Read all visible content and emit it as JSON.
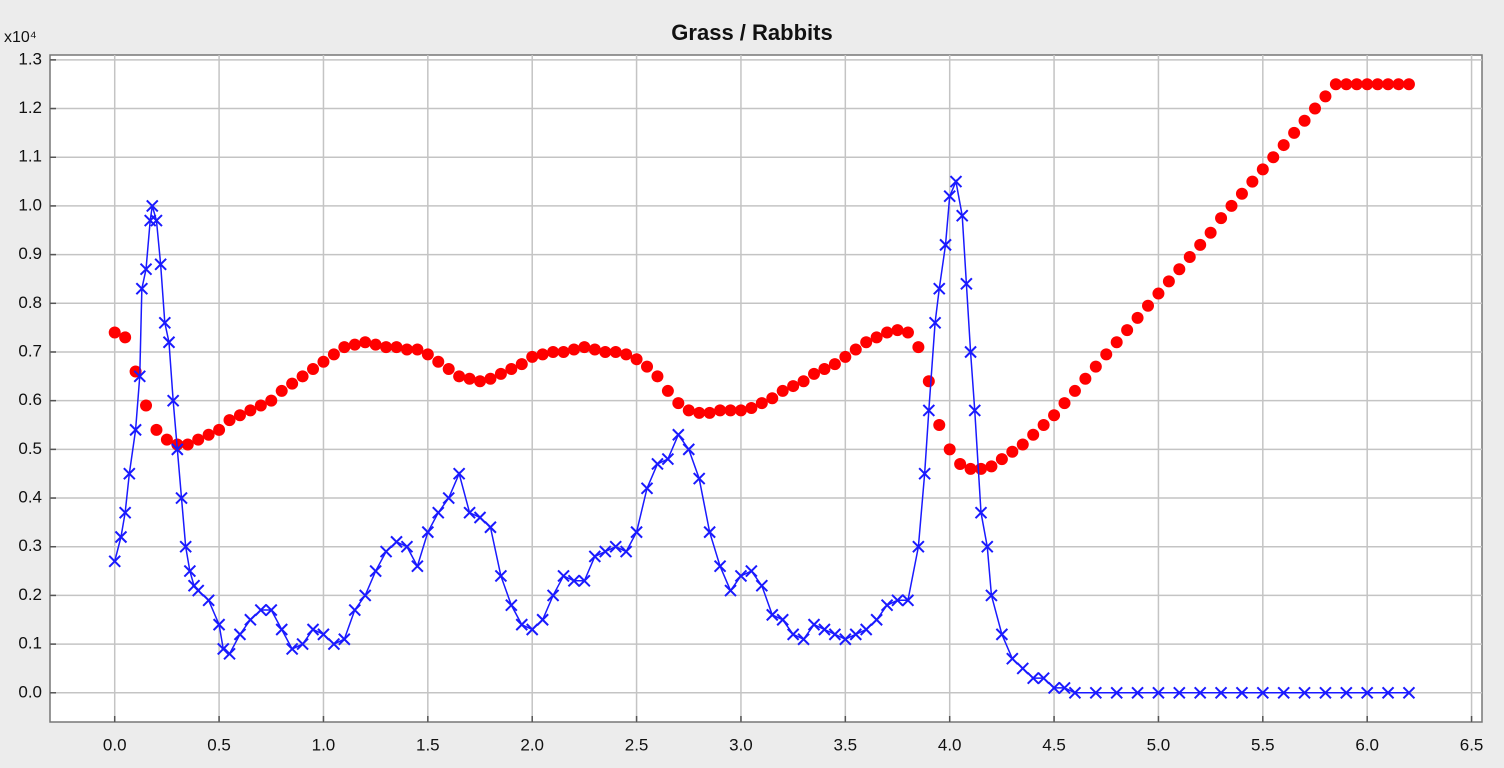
{
  "chart_data": {
    "type": "line",
    "title": "Grass / Rabbits",
    "y_multiplier": "x10⁴",
    "xlim": [
      -0.31,
      6.55
    ],
    "ylim": [
      -0.06,
      1.31
    ],
    "grid": true,
    "xticks": [
      {
        "value": 0,
        "label": "0.0"
      },
      0.5,
      {
        "value": 1,
        "label": "1.0"
      },
      1.5,
      {
        "value": 2,
        "label": "2.0"
      },
      2.5,
      {
        "value": 3,
        "label": "3.0"
      },
      3.5,
      {
        "value": 4,
        "label": "4.0"
      },
      4.5,
      {
        "value": 5,
        "label": "5.0"
      },
      5.5,
      {
        "value": 6,
        "label": "6.0"
      },
      6.5
    ],
    "yticks": [
      {
        "value": 0,
        "label": "0.0"
      },
      0.1,
      0.2,
      0.3,
      0.4,
      0.5,
      0.6,
      0.7,
      0.8,
      0.9,
      {
        "value": 1,
        "label": "1.0"
      },
      1.1,
      1.2,
      1.3
    ],
    "series": [
      {
        "color": "#ff0000",
        "marker": "circle",
        "x": [
          0,
          0.05,
          0.1,
          0.15,
          0.2,
          0.25,
          0.3,
          0.35,
          0.4,
          0.45,
          0.5,
          0.55,
          0.6,
          0.65,
          0.7,
          0.75,
          0.8,
          0.85,
          0.9,
          0.95,
          1,
          1.05,
          1.1,
          1.15,
          1.2,
          1.25,
          1.3,
          1.35,
          1.4,
          1.45,
          1.5,
          1.55,
          1.6,
          1.65,
          1.7,
          1.75,
          1.8,
          1.85,
          1.9,
          1.95,
          2,
          2.05,
          2.1,
          2.15,
          2.2,
          2.25,
          2.3,
          2.35,
          2.4,
          2.45,
          2.5,
          2.55,
          2.6,
          2.65,
          2.7,
          2.75,
          2.8,
          2.85,
          2.9,
          2.95,
          3,
          3.05,
          3.1,
          3.15,
          3.2,
          3.25,
          3.3,
          3.35,
          3.4,
          3.45,
          3.5,
          3.55,
          3.6,
          3.65,
          3.7,
          3.75,
          3.8,
          3.85,
          3.9,
          3.95,
          4,
          4.05,
          4.1,
          4.15,
          4.2,
          4.25,
          4.3,
          4.35,
          4.4,
          4.45,
          4.5,
          4.55,
          4.6,
          4.65,
          4.7,
          4.75,
          4.8,
          4.85,
          4.9,
          4.95,
          5,
          5.05,
          5.1,
          5.15,
          5.2,
          5.25,
          5.3,
          5.35,
          5.4,
          5.45,
          5.5,
          5.55,
          5.6,
          5.65,
          5.7,
          5.75,
          5.8,
          5.85,
          5.9,
          5.95,
          6,
          6.05,
          6.1,
          6.15,
          6.2
        ],
        "values": [
          0.74,
          0.73,
          0.66,
          0.59,
          0.54,
          0.52,
          0.51,
          0.51,
          0.52,
          0.53,
          0.54,
          0.56,
          0.57,
          0.58,
          0.59,
          0.6,
          0.62,
          0.635,
          0.65,
          0.665,
          0.68,
          0.695,
          0.71,
          0.715,
          0.72,
          0.715,
          0.71,
          0.71,
          0.705,
          0.705,
          0.695,
          0.68,
          0.665,
          0.65,
          0.645,
          0.64,
          0.645,
          0.655,
          0.665,
          0.675,
          0.69,
          0.695,
          0.7,
          0.7,
          0.705,
          0.71,
          0.705,
          0.7,
          0.7,
          0.695,
          0.685,
          0.67,
          0.65,
          0.62,
          0.595,
          0.58,
          0.575,
          0.575,
          0.58,
          0.58,
          0.58,
          0.585,
          0.595,
          0.605,
          0.62,
          0.63,
          0.64,
          0.655,
          0.665,
          0.675,
          0.69,
          0.705,
          0.72,
          0.73,
          0.74,
          0.745,
          0.74,
          0.71,
          0.64,
          0.55,
          0.5,
          0.47,
          0.46,
          0.46,
          0.465,
          0.48,
          0.495,
          0.51,
          0.53,
          0.55,
          0.57,
          0.595,
          0.62,
          0.645,
          0.67,
          0.695,
          0.72,
          0.745,
          0.77,
          0.795,
          0.82,
          0.845,
          0.87,
          0.895,
          0.92,
          0.945,
          0.975,
          1,
          1.025,
          1.05,
          1.075,
          1.1,
          1.125,
          1.15,
          1.175,
          1.2,
          1.225,
          1.25,
          1.25,
          1.25,
          1.25,
          1.25,
          1.25,
          1.25,
          1.25
        ]
      },
      {
        "color": "#1a1aff",
        "marker": "x",
        "x": [
          0,
          0.03,
          0.05,
          0.07,
          0.1,
          0.12,
          0.13,
          0.15,
          0.17,
          0.18,
          0.2,
          0.22,
          0.24,
          0.26,
          0.28,
          0.3,
          0.32,
          0.34,
          0.36,
          0.38,
          0.4,
          0.45,
          0.5,
          0.52,
          0.55,
          0.6,
          0.65,
          0.7,
          0.75,
          0.8,
          0.85,
          0.9,
          0.95,
          1,
          1.05,
          1.1,
          1.15,
          1.2,
          1.25,
          1.3,
          1.35,
          1.4,
          1.45,
          1.5,
          1.55,
          1.6,
          1.65,
          1.7,
          1.75,
          1.8,
          1.85,
          1.9,
          1.95,
          2,
          2.05,
          2.1,
          2.15,
          2.2,
          2.25,
          2.3,
          2.35,
          2.4,
          2.45,
          2.5,
          2.55,
          2.6,
          2.65,
          2.7,
          2.75,
          2.8,
          2.85,
          2.9,
          2.95,
          3,
          3.05,
          3.1,
          3.15,
          3.2,
          3.25,
          3.3,
          3.35,
          3.4,
          3.45,
          3.5,
          3.55,
          3.6,
          3.65,
          3.7,
          3.75,
          3.8,
          3.85,
          3.88,
          3.9,
          3.93,
          3.95,
          3.98,
          4,
          4.03,
          4.06,
          4.08,
          4.1,
          4.12,
          4.15,
          4.18,
          4.2,
          4.25,
          4.3,
          4.35,
          4.4,
          4.45,
          4.5,
          4.55,
          4.6,
          4.7,
          4.8,
          4.9,
          5,
          5.1,
          5.2,
          5.3,
          5.4,
          5.5,
          5.6,
          5.7,
          5.8,
          5.9,
          6,
          6.1,
          6.2
        ],
        "values": [
          0.27,
          0.32,
          0.37,
          0.45,
          0.54,
          0.65,
          0.83,
          0.87,
          0.97,
          1,
          0.97,
          0.88,
          0.76,
          0.72,
          0.6,
          0.5,
          0.4,
          0.3,
          0.25,
          0.22,
          0.21,
          0.19,
          0.14,
          0.09,
          0.08,
          0.12,
          0.15,
          0.17,
          0.17,
          0.13,
          0.09,
          0.1,
          0.13,
          0.12,
          0.1,
          0.11,
          0.17,
          0.2,
          0.25,
          0.29,
          0.31,
          0.3,
          0.26,
          0.33,
          0.37,
          0.4,
          0.45,
          0.37,
          0.36,
          0.34,
          0.24,
          0.18,
          0.14,
          0.13,
          0.15,
          0.2,
          0.24,
          0.23,
          0.23,
          0.28,
          0.29,
          0.3,
          0.29,
          0.33,
          0.42,
          0.47,
          0.48,
          0.53,
          0.5,
          0.44,
          0.33,
          0.26,
          0.21,
          0.24,
          0.25,
          0.22,
          0.16,
          0.15,
          0.12,
          0.11,
          0.14,
          0.13,
          0.12,
          0.11,
          0.12,
          0.13,
          0.15,
          0.18,
          0.19,
          0.19,
          0.3,
          0.45,
          0.58,
          0.76,
          0.83,
          0.92,
          1.02,
          1.05,
          0.98,
          0.84,
          0.7,
          0.58,
          0.37,
          0.3,
          0.2,
          0.12,
          0.07,
          0.05,
          0.03,
          0.03,
          0.01,
          0.01,
          0,
          0,
          0,
          0,
          0,
          0,
          0,
          0,
          0,
          0,
          0,
          0,
          0,
          0,
          0,
          0,
          0
        ]
      }
    ]
  }
}
